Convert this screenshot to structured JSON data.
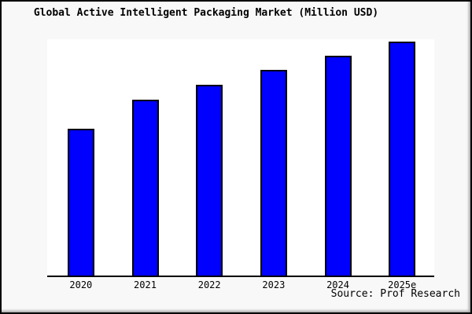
{
  "window": {
    "background_color": "#f8f8f8",
    "border_color": "#000000",
    "plot_background_color": "#ffffff"
  },
  "chart_data": {
    "type": "bar",
    "title": "Global Active Intelligent Packaging Market (Million USD)",
    "categories": [
      "2020",
      "2021",
      "2022",
      "2023",
      "2024",
      "2025e"
    ],
    "values": [
      62.5,
      74.9,
      81.3,
      87.6,
      93.6,
      99.7
    ],
    "values_unit": "percent of plot height (chart shows no y-axis tick labels or data labels)",
    "xlabel": "",
    "ylabel": "",
    "grid": false,
    "legend_position": "none",
    "bar_color": "#0000ff",
    "bar_border_color": "#000000",
    "axis_line_color": "#000000"
  },
  "footer": {
    "source_label": "Source: Prof Research"
  }
}
